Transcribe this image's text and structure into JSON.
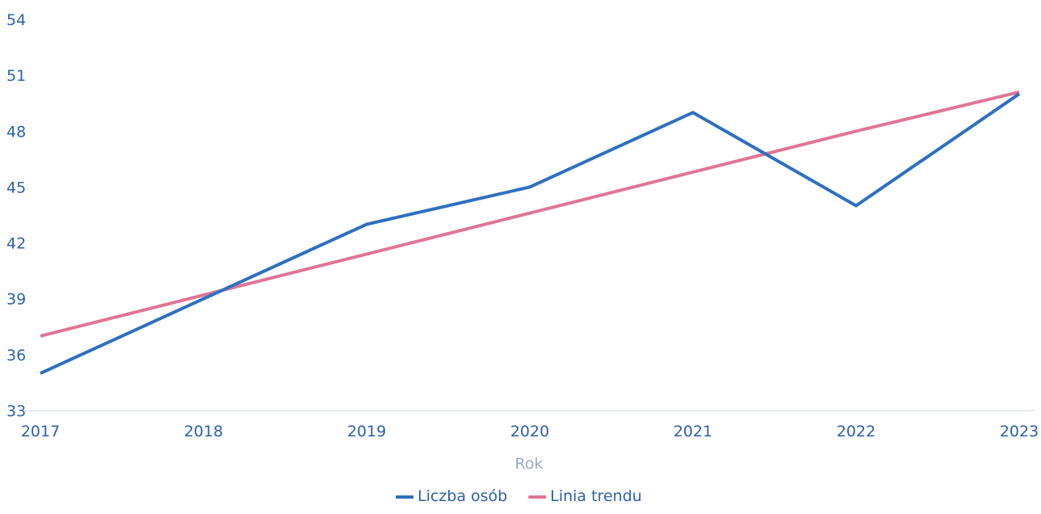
{
  "chart_data": {
    "type": "line",
    "xlabel": "Rok",
    "ylabel": "",
    "x": [
      "2017",
      "2018",
      "2019",
      "2020",
      "2021",
      "2022",
      "2023"
    ],
    "ylim": [
      33,
      54
    ],
    "yticks": [
      "33",
      "36",
      "39",
      "42",
      "45",
      "48",
      "51",
      "54"
    ],
    "grid": false,
    "legend_position": "bottom-center",
    "series": [
      {
        "name": "Liczba osób",
        "color": "#2f6fbf",
        "values": [
          35,
          39,
          43,
          45,
          49,
          44,
          50
        ]
      },
      {
        "name": "Linia trendu",
        "color": "#e07595",
        "values": [
          37.0,
          39.2,
          41.4,
          43.6,
          45.8,
          48.0,
          50.1
        ]
      }
    ]
  }
}
